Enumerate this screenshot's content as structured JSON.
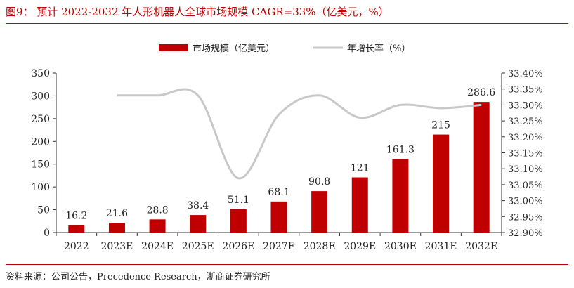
{
  "figure": {
    "title": "图9：  预计 2022-2032 年人形机器人全球市场规模 CAGR=33%（亿美元，%）",
    "source": "资料来源：公司公告，Precedence Research，浙商证券研究所"
  },
  "colors": {
    "bar": "#c00000",
    "line": "#c8c8c8",
    "accent": "#c00000"
  },
  "chart_data": {
    "type": "bar",
    "categories": [
      "2022",
      "2023E",
      "2024E",
      "2025E",
      "2026E",
      "2027E",
      "2028E",
      "2029E",
      "2030E",
      "2031E",
      "2032E"
    ],
    "series": [
      {
        "name": "市场规模（亿美元）",
        "type": "bar",
        "axis": "left",
        "values": [
          16.2,
          21.6,
          28.8,
          38.4,
          51.1,
          68.1,
          90.8,
          121,
          161.3,
          215,
          286.6
        ],
        "labels": [
          "16.2",
          "21.6",
          "28.8",
          "38.4",
          "51.1",
          "68.1",
          "90.8",
          "121",
          "161.3",
          "215",
          "286.6"
        ]
      },
      {
        "name": "年增长率（%）",
        "type": "line",
        "axis": "right",
        "values": [
          null,
          33.33,
          33.33,
          33.33,
          33.07,
          33.27,
          33.33,
          33.26,
          33.3,
          33.29,
          33.3
        ]
      }
    ],
    "y_left": {
      "ylim": [
        0,
        350
      ],
      "ticks": [
        "0",
        "50",
        "100",
        "150",
        "200",
        "250",
        "300",
        "350"
      ]
    },
    "y_right": {
      "ylim": [
        32.9,
        33.4
      ],
      "ticks": [
        "32.90%",
        "32.95%",
        "33.00%",
        "33.05%",
        "33.10%",
        "33.15%",
        "33.20%",
        "33.25%",
        "33.30%",
        "33.35%",
        "33.40%"
      ]
    },
    "legend_position": "top-center",
    "grid": false
  }
}
